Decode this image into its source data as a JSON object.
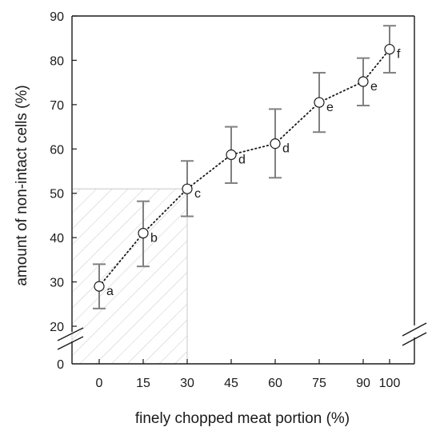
{
  "chart_data": {
    "type": "line",
    "xlabel": "finely chopped meat portion (%)",
    "ylabel": "amount of non-intact cells (%)",
    "x": [
      0,
      15,
      30,
      45,
      60,
      75,
      90,
      100
    ],
    "x_tick_labels": [
      "0",
      "15",
      "30",
      "45",
      "60",
      "75",
      "90",
      "100"
    ],
    "y_tick_labels": [
      "0",
      "20",
      "30",
      "40",
      "50",
      "60",
      "70",
      "80",
      "90"
    ],
    "y_ticks": [
      0,
      20,
      30,
      40,
      50,
      60,
      70,
      80,
      90
    ],
    "ylim": [
      0,
      90
    ],
    "y_axis_break": [
      0,
      20
    ],
    "series": [
      {
        "values": [
          29,
          41,
          51,
          58.7,
          61.2,
          70.5,
          75.2,
          82.5
        ],
        "error_low": [
          24,
          33.5,
          44.8,
          52.3,
          53.5,
          63.8,
          69.8,
          77.2
        ],
        "error_high": [
          34,
          48.2,
          57.3,
          65,
          69,
          77.2,
          80.5,
          87.8
        ],
        "point_labels": [
          "a",
          "b",
          "c",
          "d",
          "d",
          "e",
          "e",
          "f"
        ],
        "line_style": "dotted",
        "marker": "open-circle"
      }
    ],
    "shaded_region": {
      "x": [
        0,
        30
      ],
      "y": [
        0,
        51
      ],
      "pattern": "diagonal-hatch"
    },
    "grid": false
  },
  "colors": {
    "axis": "#1a1a1a",
    "error_bar": "#808080",
    "hatch": "#c8c8c8",
    "marker_fill": "#ffffff",
    "line": "#1a1a1a"
  }
}
